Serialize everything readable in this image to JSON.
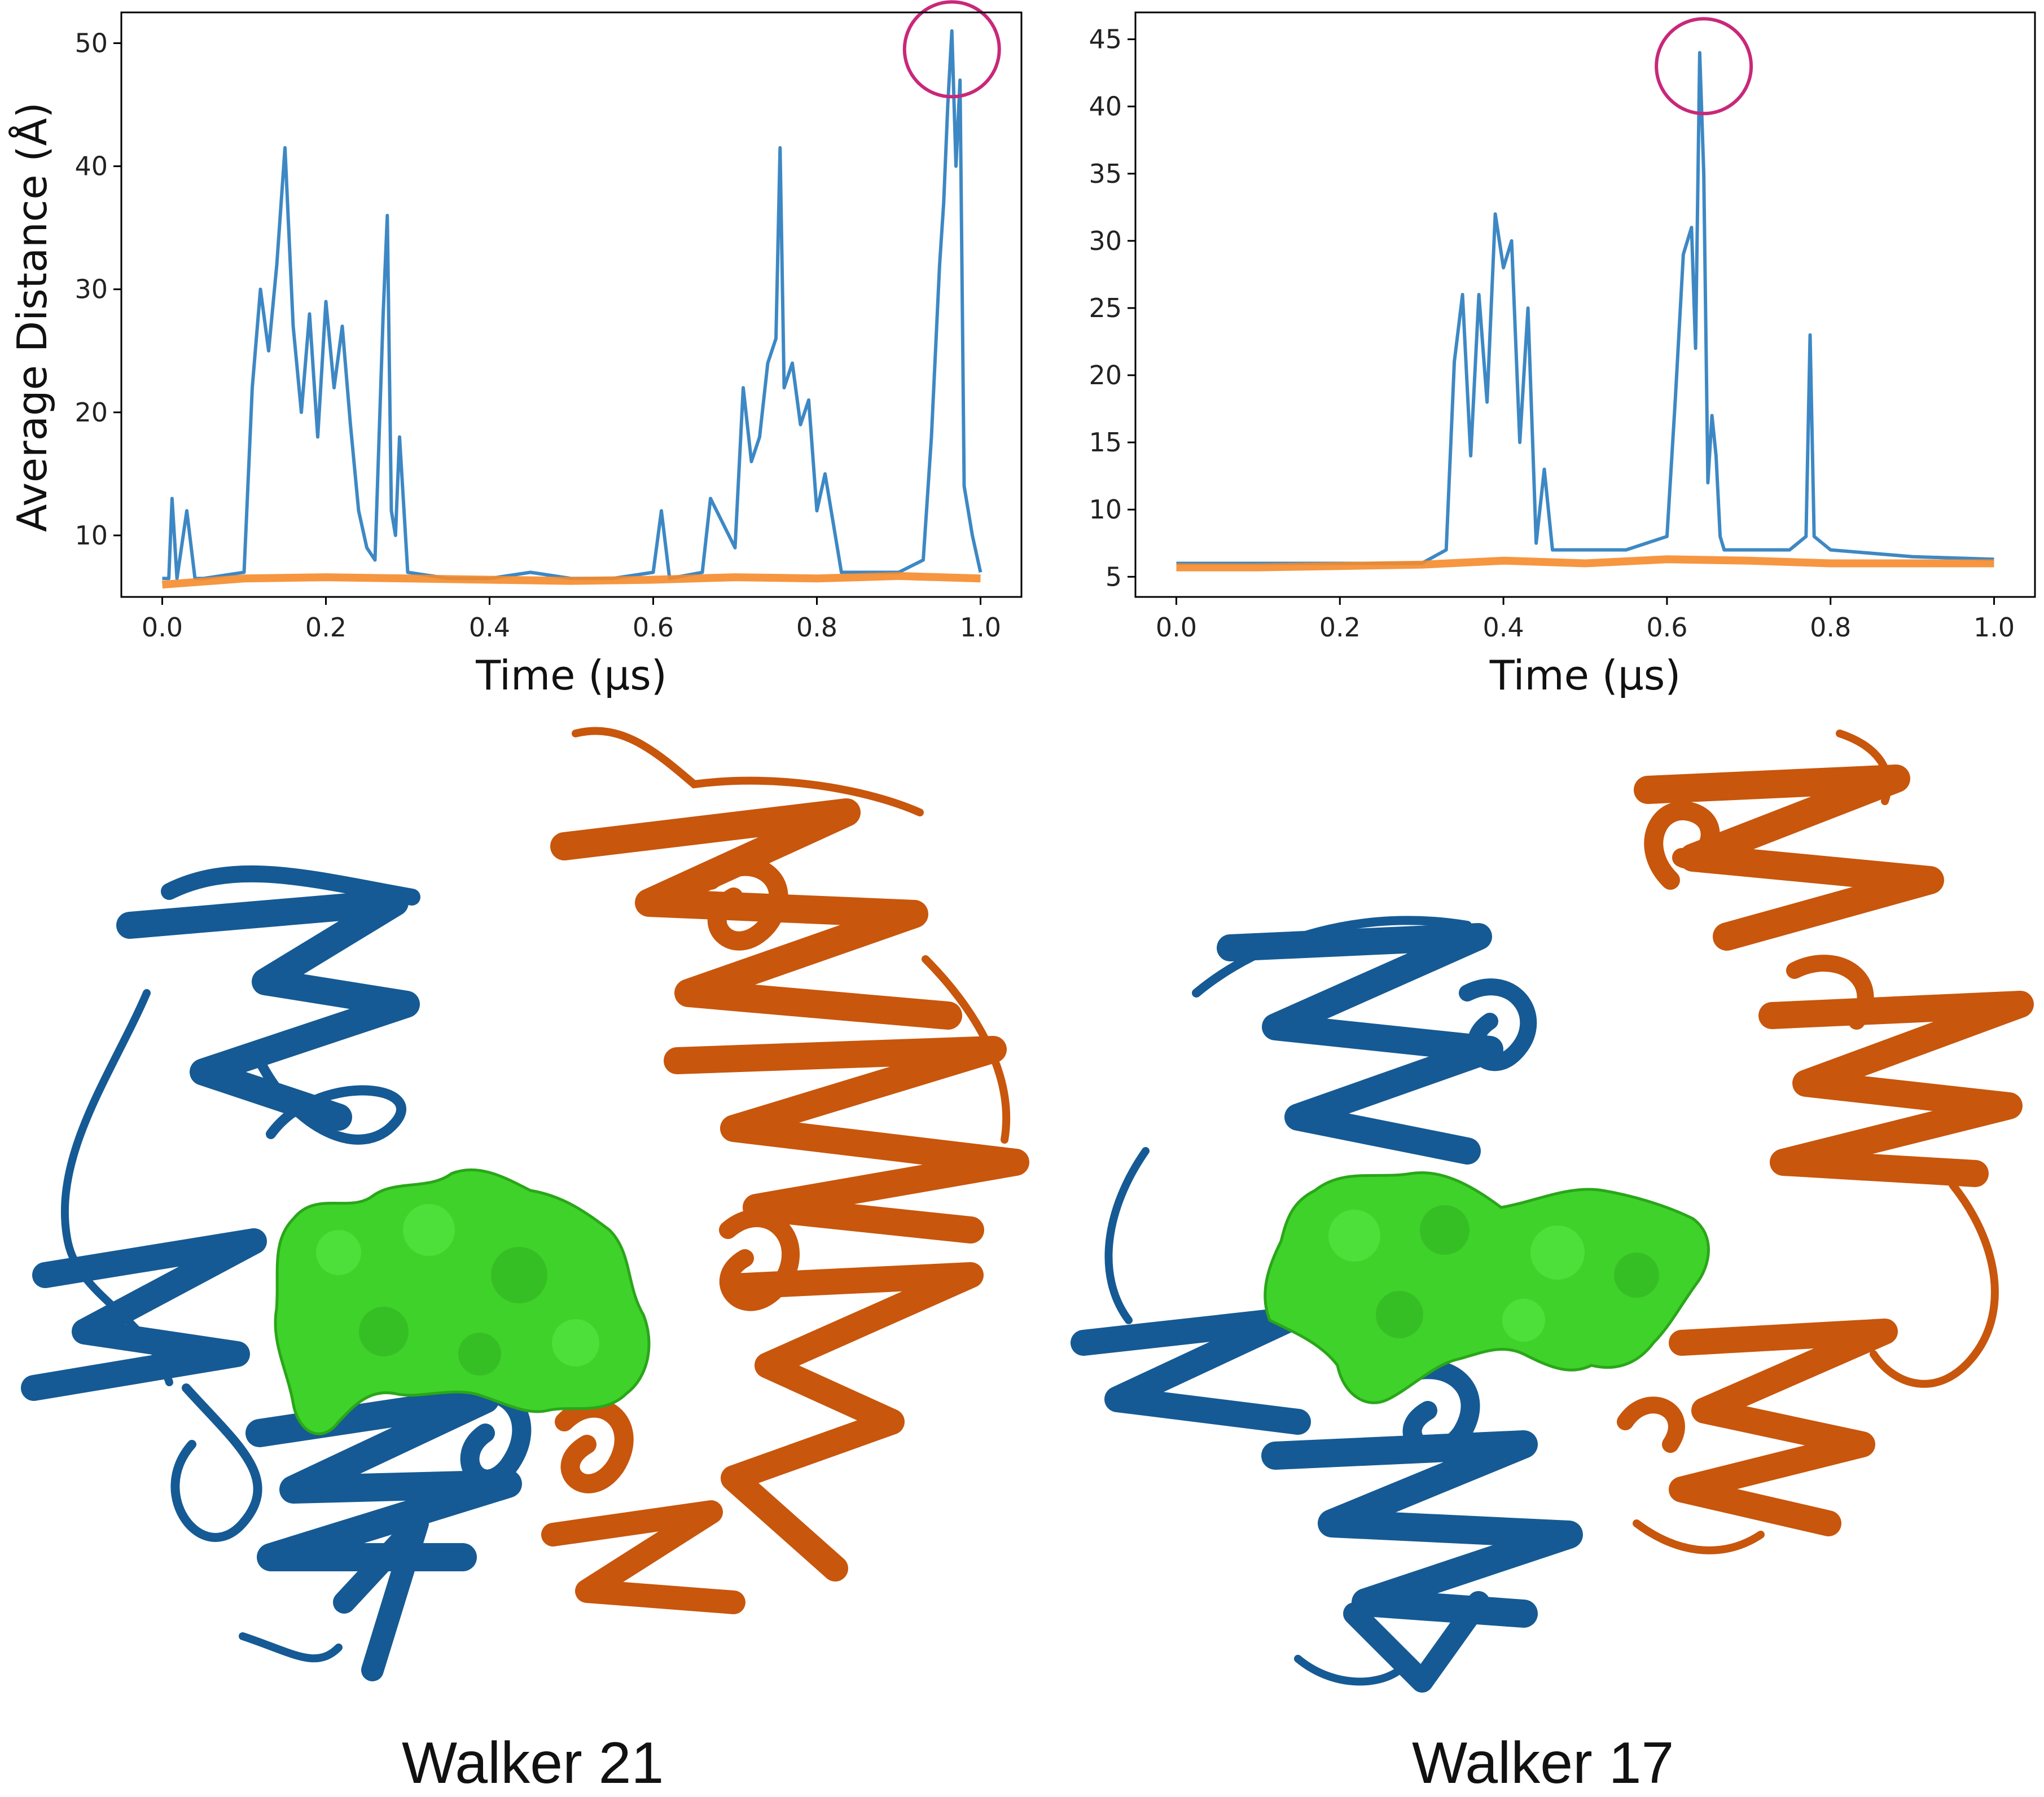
{
  "colors": {
    "series_blue": "#3d88c4",
    "series_orange": "#f58b2c",
    "highlight_circle": "#c8287a",
    "chain_blue": "#155a94",
    "chain_orange": "#c8560c",
    "ligand_green": "#3fd22a"
  },
  "chart_data": [
    {
      "type": "line",
      "title": "",
      "xlabel": "Time (µs)",
      "ylabel": "Average Distance (Å)",
      "xlim": [
        -0.05,
        1.05
      ],
      "ylim": [
        5,
        52.5
      ],
      "xticks": [
        "0.0",
        "0.2",
        "0.4",
        "0.6",
        "0.8",
        "1.0"
      ],
      "yticks": [
        "10",
        "20",
        "30",
        "40",
        "50"
      ],
      "grid": false,
      "series": [
        {
          "color": "#3d88c4",
          "x": [
            0.0,
            0.008,
            0.012,
            0.018,
            0.03,
            0.04,
            0.05,
            0.1,
            0.11,
            0.12,
            0.13,
            0.14,
            0.15,
            0.16,
            0.17,
            0.18,
            0.19,
            0.2,
            0.21,
            0.22,
            0.23,
            0.24,
            0.25,
            0.26,
            0.27,
            0.275,
            0.28,
            0.285,
            0.29,
            0.3,
            0.35,
            0.4,
            0.45,
            0.5,
            0.55,
            0.6,
            0.61,
            0.62,
            0.66,
            0.67,
            0.7,
            0.71,
            0.72,
            0.73,
            0.74,
            0.75,
            0.755,
            0.76,
            0.77,
            0.78,
            0.79,
            0.8,
            0.81,
            0.82,
            0.83,
            0.9,
            0.93,
            0.94,
            0.95,
            0.955,
            0.96,
            0.965,
            0.97,
            0.975,
            0.98,
            0.99,
            1.0
          ],
          "y": [
            6.5,
            6.5,
            13.0,
            6.5,
            12.0,
            6.5,
            6.5,
            7.0,
            22.0,
            30.0,
            25.0,
            32.0,
            41.5,
            27.0,
            20.0,
            28.0,
            18.0,
            29.0,
            22.0,
            27.0,
            19.0,
            12.0,
            9.0,
            8.0,
            28.0,
            36.0,
            12.0,
            10.0,
            18.0,
            7.0,
            6.5,
            6.5,
            7.0,
            6.5,
            6.5,
            7.0,
            12.0,
            6.5,
            7.0,
            13.0,
            9.0,
            22.0,
            16.0,
            18.0,
            24.0,
            26.0,
            41.5,
            22.0,
            24.0,
            19.0,
            21.0,
            12.0,
            15.0,
            11.0,
            7.0,
            7.0,
            8.0,
            18.0,
            32.0,
            37.0,
            45.0,
            51.0,
            40.0,
            47.0,
            14.0,
            10.0,
            7.0
          ]
        },
        {
          "color": "#f58b2c",
          "x": [
            0.0,
            0.1,
            0.2,
            0.3,
            0.4,
            0.5,
            0.6,
            0.7,
            0.8,
            0.9,
            1.0
          ],
          "y": [
            6.0,
            6.5,
            6.6,
            6.5,
            6.4,
            6.3,
            6.4,
            6.6,
            6.5,
            6.7,
            6.5
          ]
        }
      ],
      "annotation": {
        "shape": "circle",
        "x": 0.965,
        "y": 49.5
      }
    },
    {
      "type": "line",
      "title": "",
      "xlabel": "Time (µs)",
      "ylabel": "",
      "xlim": [
        -0.05,
        1.05
      ],
      "ylim": [
        3.5,
        47.0
      ],
      "xticks": [
        "0.0",
        "0.2",
        "0.4",
        "0.6",
        "0.8",
        "1.0"
      ],
      "yticks": [
        "5",
        "10",
        "15",
        "20",
        "25",
        "30",
        "35",
        "40",
        "45"
      ],
      "grid": false,
      "series": [
        {
          "color": "#3d88c4",
          "x": [
            0.0,
            0.1,
            0.2,
            0.3,
            0.33,
            0.34,
            0.35,
            0.36,
            0.37,
            0.38,
            0.39,
            0.4,
            0.41,
            0.42,
            0.43,
            0.44,
            0.45,
            0.46,
            0.5,
            0.55,
            0.6,
            0.61,
            0.62,
            0.63,
            0.635,
            0.64,
            0.645,
            0.65,
            0.655,
            0.66,
            0.665,
            0.67,
            0.68,
            0.7,
            0.75,
            0.77,
            0.775,
            0.78,
            0.8,
            0.9,
            1.0
          ],
          "y": [
            6.0,
            6.0,
            6.0,
            6.0,
            7.0,
            21.0,
            26.0,
            14.0,
            26.0,
            18.0,
            32.0,
            28.0,
            30.0,
            15.0,
            25.0,
            7.5,
            13.0,
            7.0,
            7.0,
            7.0,
            8.0,
            18.0,
            29.0,
            31.0,
            22.0,
            44.0,
            35.0,
            12.0,
            17.0,
            14.0,
            8.0,
            7.0,
            7.0,
            7.0,
            7.0,
            8.0,
            23.0,
            8.0,
            7.0,
            6.5,
            6.3
          ]
        },
        {
          "color": "#f58b2c",
          "x": [
            0.0,
            0.1,
            0.2,
            0.3,
            0.4,
            0.5,
            0.6,
            0.7,
            0.8,
            0.9,
            1.0
          ],
          "y": [
            5.7,
            5.7,
            5.8,
            5.9,
            6.2,
            6.0,
            6.3,
            6.2,
            6.0,
            6.0,
            6.0
          ]
        }
      ],
      "annotation": {
        "shape": "circle",
        "x": 0.645,
        "y": 43.0
      }
    }
  ],
  "captions": {
    "left": "Walker 21",
    "right": "Walker 17"
  }
}
